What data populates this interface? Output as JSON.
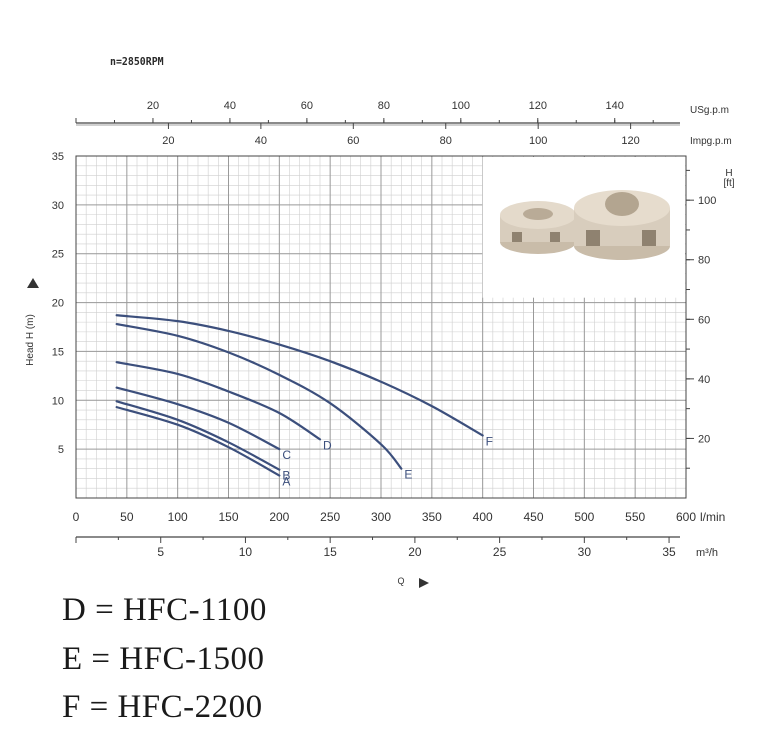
{
  "header": {
    "speed_label": "n=2850RPM"
  },
  "colors": {
    "curve": "#3c4f7c",
    "grid_major": "#9a9a9a",
    "grid_minor": "#cfcfcf",
    "axis": "#444444",
    "impeller": "#d8cdbd"
  },
  "chart_data": {
    "type": "line",
    "xlabel": "Q",
    "ylabel": "Head H (m)",
    "xlim": [
      0,
      600
    ],
    "ylim": [
      0,
      35
    ],
    "grid": true,
    "x_unit": "l/min",
    "x_ticks": [
      0,
      50,
      100,
      150,
      200,
      250,
      300,
      350,
      400,
      450,
      500,
      550,
      600
    ],
    "y_ticks": [
      5,
      10,
      15,
      20,
      25,
      30,
      35
    ],
    "secondary_axes": {
      "usgpm": {
        "label": "USg.p.m",
        "ticks": [
          20,
          40,
          60,
          80,
          100,
          120,
          140
        ]
      },
      "impgpm": {
        "label": "Impg.p.m",
        "ticks": [
          20,
          40,
          60,
          80,
          100,
          120
        ]
      },
      "head_ft": {
        "label": "H [ft]",
        "ticks": [
          20,
          40,
          60,
          80,
          100
        ]
      },
      "m3h": {
        "label": "m³/h",
        "ticks": [
          5,
          10,
          15,
          20,
          25,
          30,
          35
        ]
      }
    },
    "series": [
      {
        "name": "A",
        "x": [
          40,
          100,
          150,
          200
        ],
        "y": [
          9.3,
          7.5,
          5.2,
          2.3
        ]
      },
      {
        "name": "B",
        "x": [
          40,
          100,
          150,
          200
        ],
        "y": [
          9.9,
          8.0,
          5.7,
          2.9
        ]
      },
      {
        "name": "C",
        "x": [
          40,
          100,
          150,
          200
        ],
        "y": [
          11.3,
          9.6,
          7.7,
          5.0
        ]
      },
      {
        "name": "D",
        "x": [
          40,
          100,
          150,
          200,
          240
        ],
        "y": [
          13.9,
          12.7,
          10.9,
          8.7,
          6.0
        ]
      },
      {
        "name": "E",
        "x": [
          40,
          100,
          150,
          200,
          250,
          300,
          320
        ],
        "y": [
          17.8,
          16.6,
          14.9,
          12.6,
          9.7,
          5.5,
          3.0
        ]
      },
      {
        "name": "F",
        "x": [
          40,
          100,
          150,
          200,
          250,
          300,
          350,
          400
        ],
        "y": [
          18.7,
          18.1,
          17.1,
          15.7,
          14.0,
          11.9,
          9.4,
          6.4
        ]
      }
    ]
  },
  "legend": [
    "D = HFC-1100",
    "E = HFC-1500",
    "F = HFC-2200"
  ]
}
